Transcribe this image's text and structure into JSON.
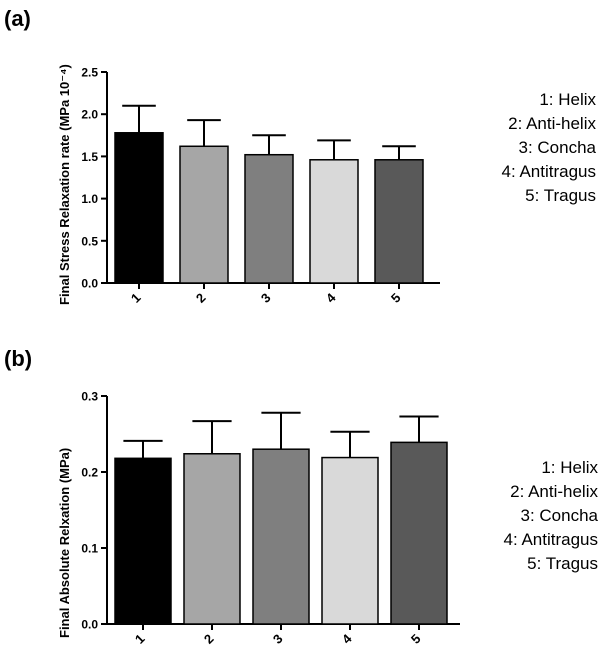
{
  "chart_data": [
    {
      "type": "bar",
      "panel_label": "(a)",
      "categories": [
        "1",
        "2",
        "3",
        "4",
        "5"
      ],
      "values": [
        1.78,
        1.62,
        1.52,
        1.46,
        1.46
      ],
      "errors": [
        0.32,
        0.31,
        0.23,
        0.23,
        0.16
      ],
      "colors": [
        "#000000",
        "#a6a6a6",
        "#7f7f7f",
        "#d9d9d9",
        "#595959"
      ],
      "ylabel": "Final Stress Relaxation rate (MPa 10⁻⁴)",
      "ylim": [
        0,
        2.5
      ],
      "yticks": [
        "0.0",
        "0.5",
        "1.0",
        "1.5",
        "2.0",
        "2.5"
      ],
      "legend": [
        "1: Helix",
        "2: Anti-helix",
        "3: Concha",
        "4: Antitragus",
        "5: Tragus"
      ],
      "grid": false
    },
    {
      "type": "bar",
      "panel_label": "(b)",
      "categories": [
        "1",
        "2",
        "3",
        "4",
        "5"
      ],
      "values": [
        0.218,
        0.224,
        0.23,
        0.219,
        0.239
      ],
      "errors": [
        0.023,
        0.043,
        0.048,
        0.034,
        0.034
      ],
      "colors": [
        "#000000",
        "#a6a6a6",
        "#7f7f7f",
        "#d9d9d9",
        "#595959"
      ],
      "ylabel": "Final Absolute Relxation (MPa)",
      "ylim": [
        0,
        0.3
      ],
      "yticks": [
        "0.0",
        "0.1",
        "0.2",
        "0.3"
      ],
      "legend": [
        "1: Helix",
        "2: Anti-helix",
        "3: Concha",
        "4: Antitragus",
        "5: Tragus"
      ],
      "grid": false
    }
  ]
}
